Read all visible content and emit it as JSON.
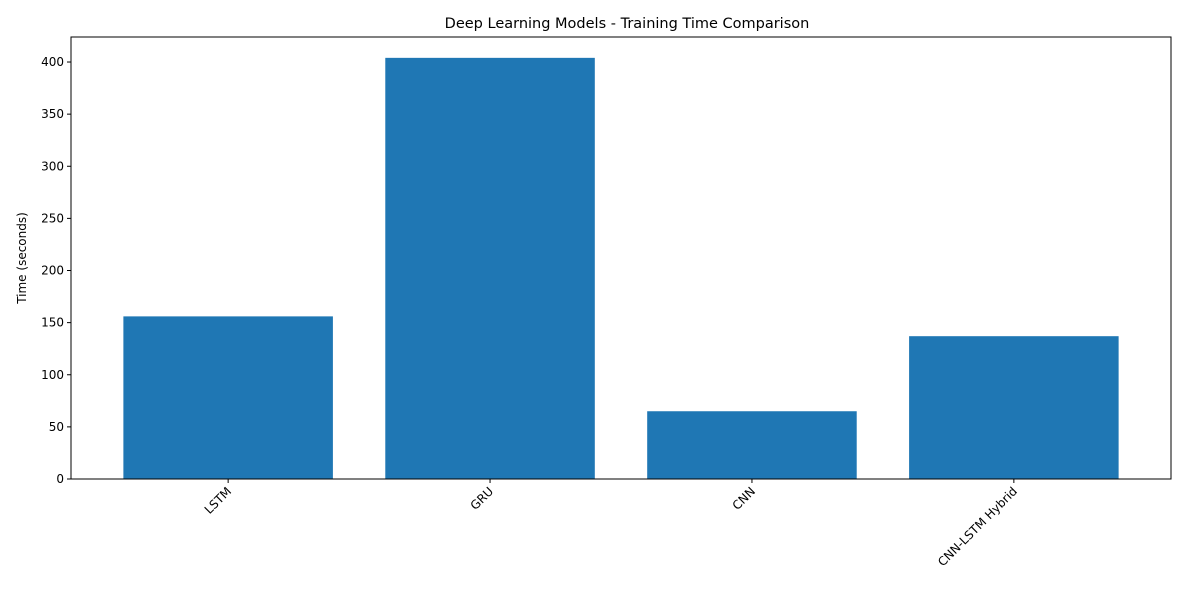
{
  "chart_data": {
    "type": "bar",
    "title": "Deep Learning Models - Training Time Comparison",
    "xlabel": "",
    "ylabel": "Time (seconds)",
    "categories": [
      "LSTM",
      "GRU",
      "CNN",
      "CNN-LSTM Hybrid"
    ],
    "values": [
      156,
      404,
      65,
      137
    ],
    "ylim": [
      0,
      424
    ],
    "yticks": [
      0,
      50,
      100,
      150,
      200,
      250,
      300,
      350,
      400
    ],
    "grid": false,
    "legend": "none",
    "bar_color": "#1f77b4",
    "xtick_rotation": -45
  }
}
